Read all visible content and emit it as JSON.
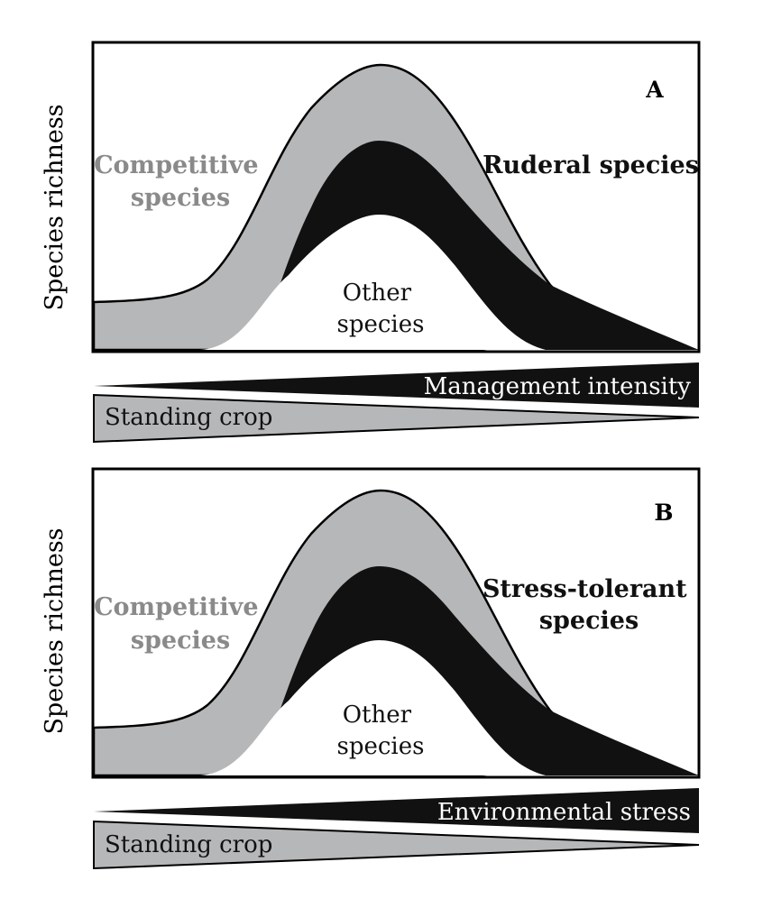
{
  "colors": {
    "competitive_fill": "#b6b7b9",
    "group_fill": "#111111",
    "other_fill": "#ffffff",
    "competitive_text": "#8a8a8a",
    "frame_stroke": "#000000"
  },
  "panels": [
    {
      "letter": "A",
      "ylabel": "Species richness",
      "competitive_label": [
        "Competitive",
        "species"
      ],
      "group_label": [
        "Ruderal species"
      ],
      "other_label": [
        "Other",
        "species"
      ],
      "gradient_label": "Management intensity",
      "standing_crop_label": "Standing crop"
    },
    {
      "letter": "B",
      "ylabel": "Species richness",
      "competitive_label": [
        "Competitive",
        "species"
      ],
      "group_label": [
        "Stress-tolerant",
        "species"
      ],
      "other_label": [
        "Other",
        "species"
      ],
      "gradient_label": "Environmental stress",
      "standing_crop_label": "Standing crop"
    }
  ]
}
